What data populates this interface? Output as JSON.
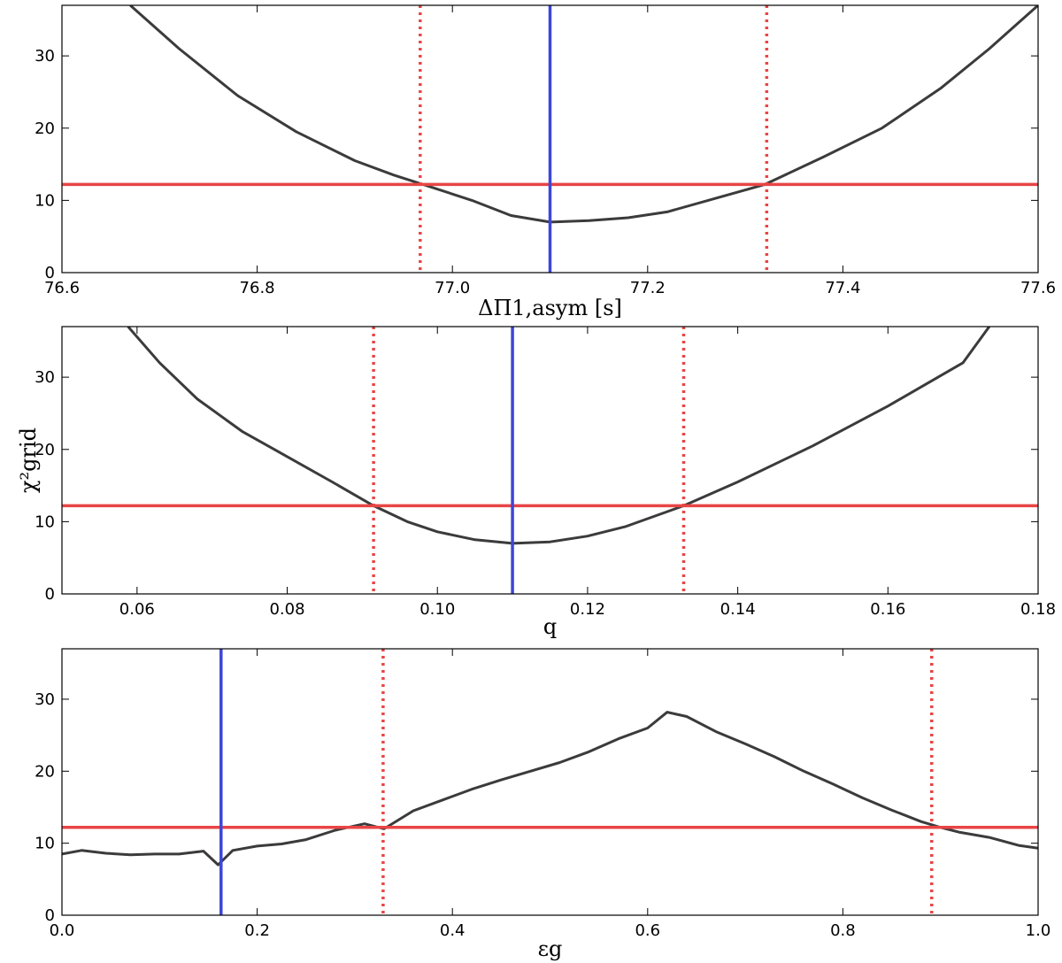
{
  "colors": {
    "curve": "#3b3b3b",
    "threshold": "#e84545",
    "best": "#3e46d9",
    "interval": "#e84545"
  },
  "shared_ylabel": "χ²grid",
  "chart_data": [
    {
      "type": "line",
      "title": "",
      "xlabel": "ΔΠ1,asym [s]",
      "ylabel": "",
      "xlim": [
        76.6,
        77.6
      ],
      "ylim": [
        0,
        37
      ],
      "xticks": [
        76.6,
        76.8,
        77.0,
        77.2,
        77.4,
        77.6
      ],
      "xtick_labels": [
        "76.6",
        "76.8",
        "77.0",
        "77.2",
        "77.4",
        "77.6"
      ],
      "yticks": [
        0,
        10,
        20,
        30
      ],
      "ytick_labels": [
        "0",
        "10",
        "20",
        "30"
      ],
      "grid": false,
      "x": [
        76.67,
        76.72,
        76.78,
        76.84,
        76.9,
        76.94,
        76.97,
        77.02,
        77.06,
        77.1,
        77.14,
        77.18,
        77.22,
        77.27,
        77.32,
        77.38,
        77.44,
        77.5,
        77.55,
        77.6
      ],
      "y": [
        37.0,
        31.0,
        24.5,
        19.5,
        15.5,
        13.5,
        12.2,
        10.0,
        7.9,
        7.0,
        7.2,
        7.6,
        8.4,
        10.3,
        12.2,
        16.0,
        20.0,
        25.5,
        31.0,
        37.0
      ],
      "threshold_y": 12.2,
      "best_x": 77.1,
      "interval_x": [
        76.967,
        77.322
      ]
    },
    {
      "type": "line",
      "title": "",
      "xlabel": "q",
      "ylabel": "χ²grid",
      "xlim": [
        0.05,
        0.18
      ],
      "ylim": [
        0,
        37
      ],
      "xticks": [
        0.06,
        0.08,
        0.1,
        0.12,
        0.14,
        0.16,
        0.18
      ],
      "xtick_labels": [
        "0.06",
        "0.08",
        "0.10",
        "0.12",
        "0.14",
        "0.16",
        "0.18"
      ],
      "yticks": [
        0,
        10,
        20,
        30
      ],
      "ytick_labels": [
        "0",
        "10",
        "20",
        "30"
      ],
      "grid": false,
      "x": [
        0.0588,
        0.063,
        0.068,
        0.074,
        0.08,
        0.086,
        0.0915,
        0.096,
        0.1,
        0.105,
        0.11,
        0.115,
        0.12,
        0.125,
        0.1328,
        0.14,
        0.15,
        0.16,
        0.17,
        0.1735
      ],
      "y": [
        37.0,
        32.0,
        27.0,
        22.5,
        19.0,
        15.5,
        12.2,
        10.0,
        8.6,
        7.5,
        7.0,
        7.2,
        8.0,
        9.3,
        12.2,
        15.5,
        20.5,
        26.0,
        32.0,
        37.0
      ],
      "threshold_y": 12.2,
      "best_x": 0.11,
      "interval_x": [
        0.0915,
        0.1328
      ]
    },
    {
      "type": "line",
      "title": "",
      "xlabel": "εg",
      "ylabel": "",
      "xlim": [
        0.0,
        1.0
      ],
      "ylim": [
        0,
        37
      ],
      "xticks": [
        0.0,
        0.2,
        0.4,
        0.6,
        0.8,
        1.0
      ],
      "xtick_labels": [
        "0.0",
        "0.2",
        "0.4",
        "0.6",
        "0.8",
        "1.0"
      ],
      "yticks": [
        0,
        10,
        20,
        30
      ],
      "ytick_labels": [
        "0",
        "10",
        "20",
        "30"
      ],
      "grid": false,
      "x": [
        0.0,
        0.02,
        0.045,
        0.07,
        0.095,
        0.12,
        0.145,
        0.16,
        0.175,
        0.2,
        0.225,
        0.25,
        0.28,
        0.31,
        0.33,
        0.36,
        0.39,
        0.42,
        0.45,
        0.48,
        0.51,
        0.54,
        0.57,
        0.6,
        0.62,
        0.64,
        0.67,
        0.7,
        0.73,
        0.76,
        0.79,
        0.82,
        0.85,
        0.88,
        0.9,
        0.92,
        0.95,
        0.98,
        1.0
      ],
      "y": [
        8.5,
        9.0,
        8.6,
        8.4,
        8.5,
        8.5,
        8.9,
        7.0,
        9.0,
        9.6,
        9.9,
        10.5,
        11.8,
        12.7,
        12.0,
        14.5,
        16.0,
        17.5,
        18.8,
        20.0,
        21.2,
        22.7,
        24.5,
        26.0,
        28.2,
        27.6,
        25.5,
        23.8,
        22.0,
        20.0,
        18.2,
        16.3,
        14.6,
        13.0,
        12.2,
        11.5,
        10.8,
        9.7,
        9.3
      ],
      "threshold_y": 12.2,
      "best_x": 0.163,
      "interval_x": [
        0.329,
        0.891
      ]
    }
  ]
}
